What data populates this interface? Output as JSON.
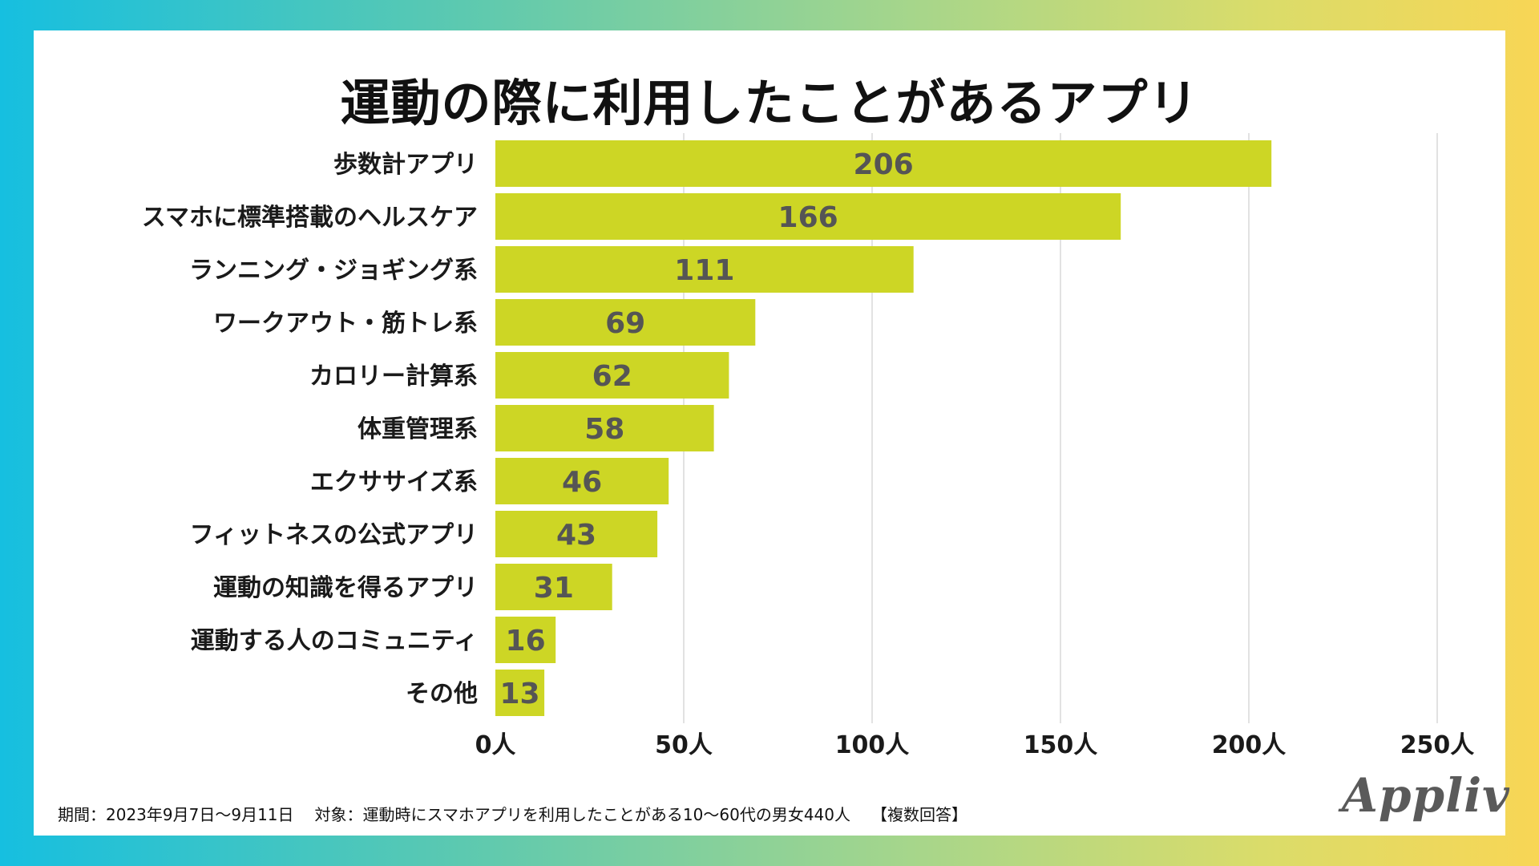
{
  "title": "運動の際に利用したことがあるアプリ",
  "chart_data": {
    "type": "bar",
    "orientation": "horizontal",
    "title": "運動の際に利用したことがあるアプリ",
    "categories": [
      "歩数計アプリ",
      "スマホに標準搭載のヘルスケア",
      "ランニング・ジョギング系",
      "ワークアウト・筋トレ系",
      "カロリー計算系",
      "体重管理系",
      "エクササイズ系",
      "フィットネスの公式アプリ",
      "運動の知識を得るアプリ",
      "運動する人のコミュニティ",
      "その他"
    ],
    "values": [
      206,
      166,
      111,
      69,
      62,
      58,
      46,
      43,
      31,
      16,
      13
    ],
    "xlim": [
      0,
      250
    ],
    "x_ticks": [
      0,
      50,
      100,
      150,
      200,
      250
    ],
    "tick_unit": "人",
    "grid": true,
    "bar_color": "#cdd625",
    "value_label_color": "#555555"
  },
  "footnote": {
    "period": "期間：2023年9月7日〜9月11日",
    "target": "対象：運動時にスマホアプリを利用したことがある10〜60代の男女440人",
    "note": "【複数回答】"
  },
  "logo": "Appliv"
}
